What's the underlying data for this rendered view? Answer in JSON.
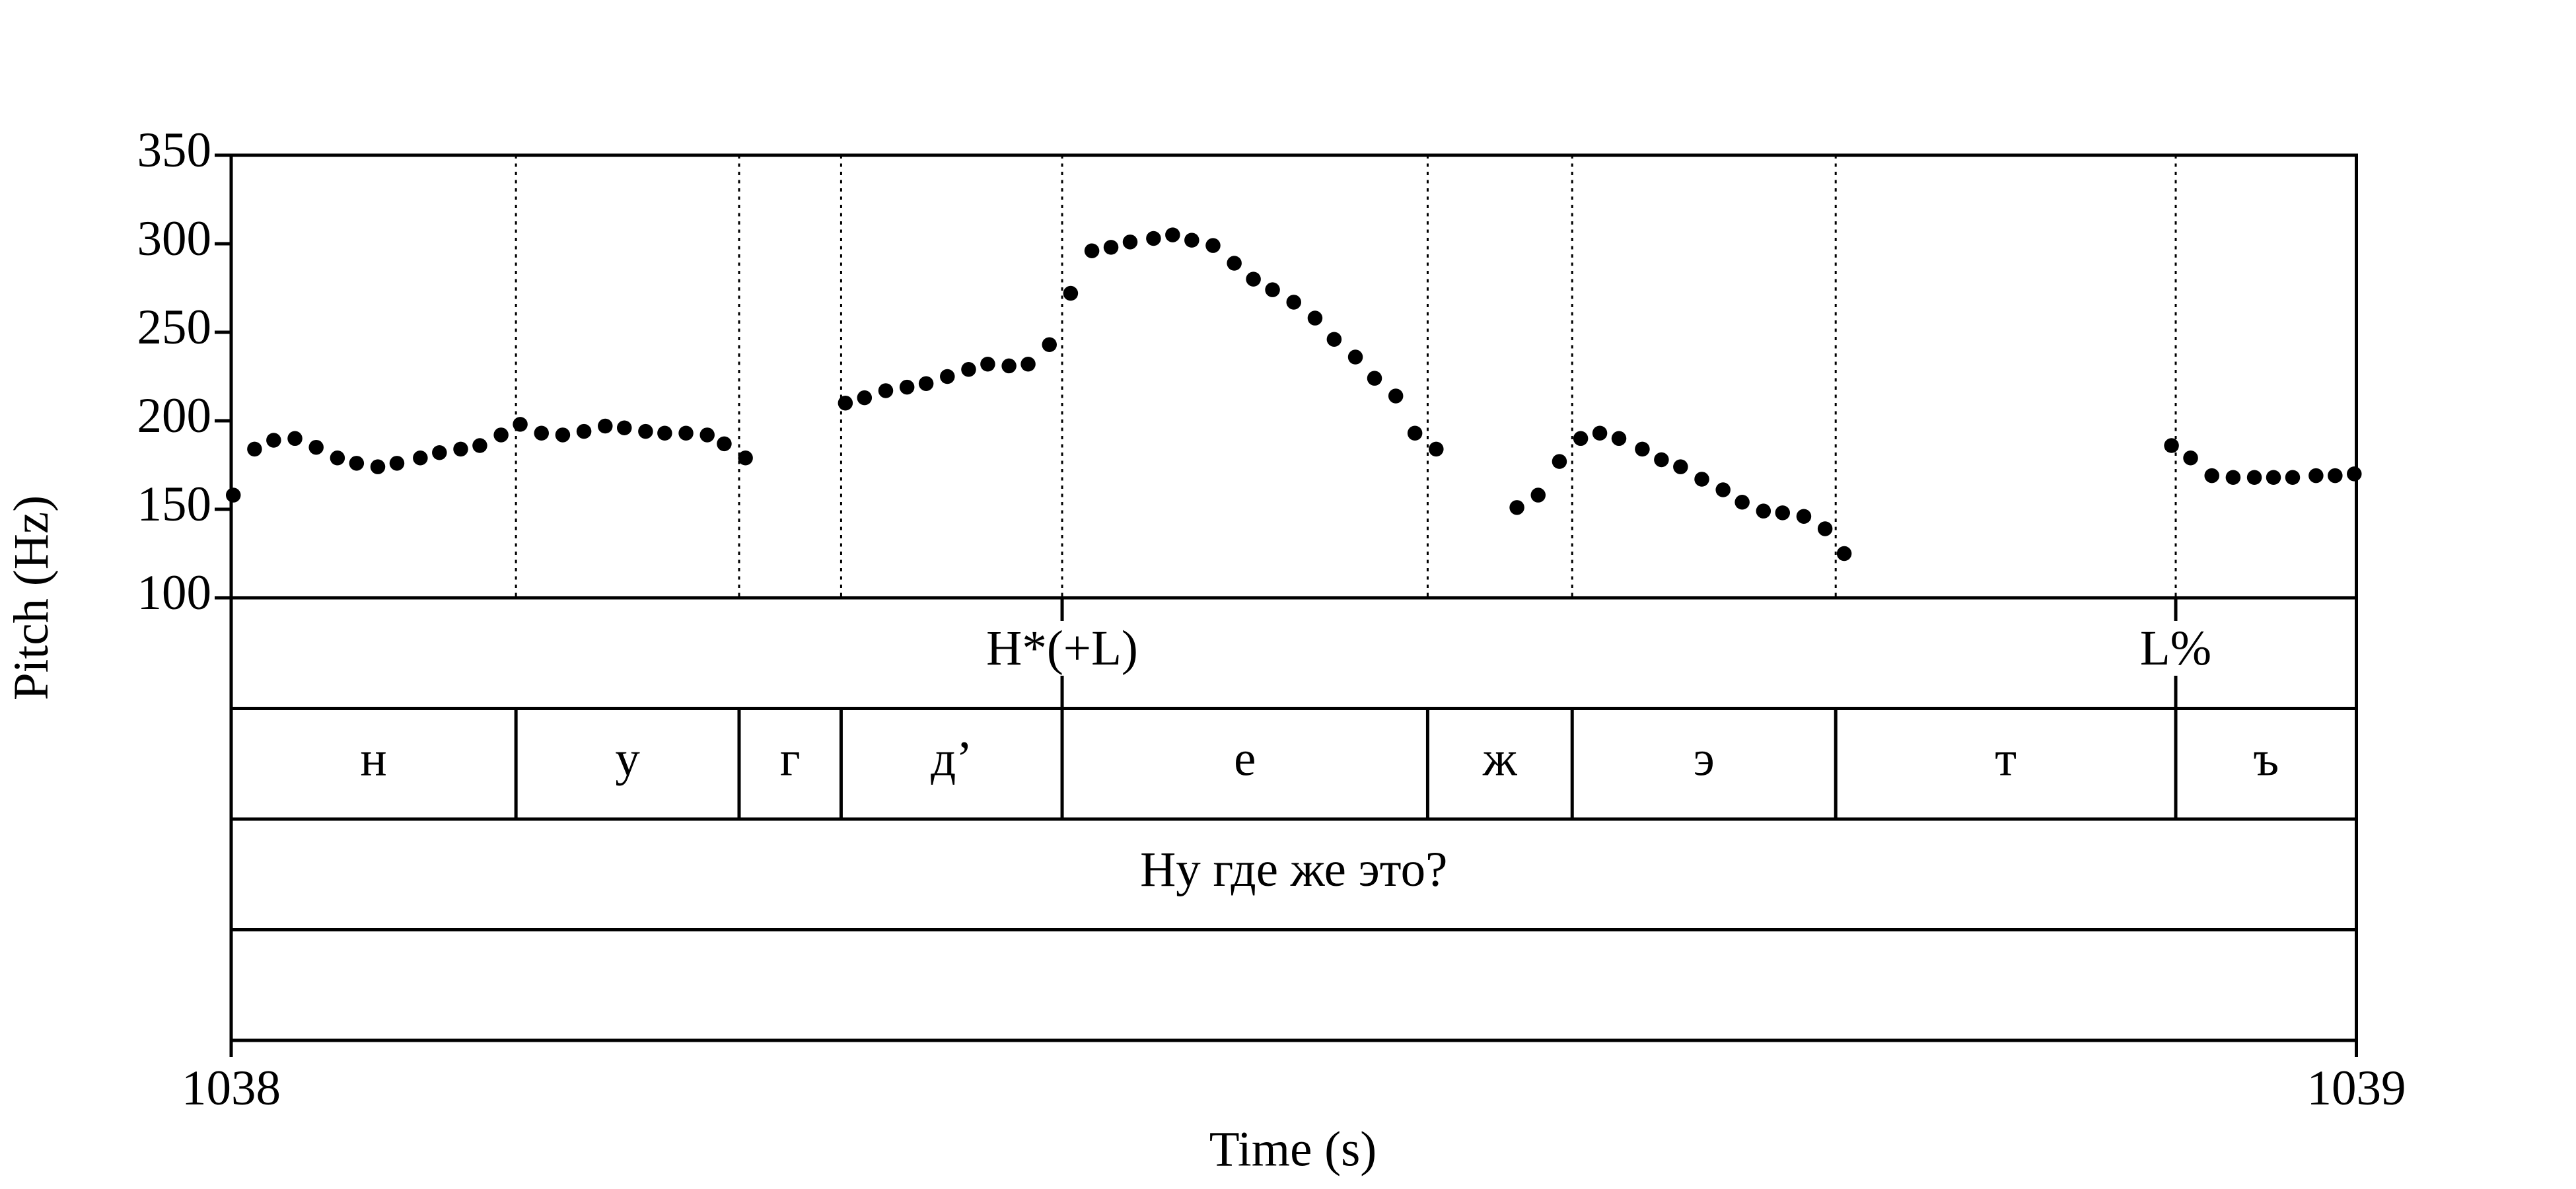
{
  "chart_data": {
    "type": "scatter",
    "y_label": "Pitch (Hz)",
    "x_label": "Time (s)",
    "xlim": [
      1038,
      1039
    ],
    "xticks": [
      1038,
      1039
    ],
    "ylim": [
      100,
      350
    ],
    "yticks": [
      100,
      150,
      200,
      250,
      300,
      350
    ],
    "color": "#000000",
    "x": [
      1038.001,
      1038.011,
      1038.02,
      1038.03,
      1038.04,
      1038.05,
      1038.059,
      1038.069,
      1038.078,
      1038.089,
      1038.098,
      1038.108,
      1038.117,
      1038.127,
      1038.136,
      1038.146,
      1038.156,
      1038.166,
      1038.176,
      1038.185,
      1038.195,
      1038.204,
      1038.214,
      1038.224,
      1038.232,
      1038.242,
      1038.289,
      1038.298,
      1038.308,
      1038.318,
      1038.327,
      1038.337,
      1038.347,
      1038.356,
      1038.366,
      1038.375,
      1038.385,
      1038.395,
      1038.405,
      1038.414,
      1038.423,
      1038.434,
      1038.443,
      1038.452,
      1038.462,
      1038.472,
      1038.481,
      1038.49,
      1038.5,
      1038.51,
      1038.519,
      1038.529,
      1038.538,
      1038.548,
      1038.557,
      1038.567,
      1038.605,
      1038.615,
      1038.625,
      1038.635,
      1038.644,
      1038.653,
      1038.664,
      1038.673,
      1038.682,
      1038.692,
      1038.702,
      1038.711,
      1038.721,
      1038.73,
      1038.74,
      1038.75,
      1038.759,
      1038.913,
      1038.922,
      1038.932,
      1038.942,
      1038.952,
      1038.961,
      1038.97,
      1038.981,
      1038.99,
      1038.999
    ],
    "values": [
      158,
      184,
      189,
      190,
      185,
      179,
      176,
      174,
      176,
      179,
      182,
      184,
      186,
      192,
      198,
      193,
      192,
      194,
      197,
      196,
      194,
      193,
      193,
      192,
      187,
      179,
      210,
      213,
      217,
      219,
      221,
      225,
      229,
      232,
      231,
      232,
      243,
      272,
      296,
      298,
      301,
      303,
      305,
      302,
      299,
      289,
      280,
      274,
      267,
      258,
      246,
      236,
      224,
      214,
      193,
      184,
      151,
      158,
      177,
      190,
      193,
      190,
      184,
      178,
      174,
      167,
      161,
      154,
      149,
      148,
      146,
      139,
      125,
      186,
      179,
      169,
      168,
      168,
      168,
      168,
      169,
      169,
      170
    ],
    "tiers": [
      {
        "points": [
          {
            "time": 1038.391,
            "label": "H*(+L)"
          },
          {
            "time": 1038.915,
            "label": "L%"
          }
        ]
      },
      {
        "boundaries": [
          1038.134,
          1038.239,
          1038.287,
          1038.391,
          1038.563,
          1038.631,
          1038.755,
          1038.915
        ],
        "labels": [
          "н",
          "у",
          "г",
          "д’",
          "е",
          "ж",
          "э",
          "т",
          "ъ"
        ]
      },
      {
        "boundaries": [],
        "labels": [
          "Ну где же это?"
        ]
      },
      {
        "boundaries": [],
        "labels": []
      }
    ]
  }
}
